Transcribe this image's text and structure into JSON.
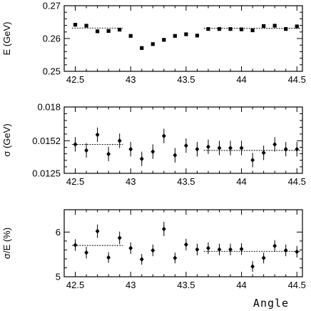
{
  "chart_data": [
    {
      "type": "scatter",
      "marker": "square",
      "ylabel": "E (GeV)",
      "xlim": [
        42.4,
        44.55
      ],
      "ylim": [
        0.25,
        0.27
      ],
      "x_ticks": [
        42.5,
        43,
        43.5,
        44,
        44.5
      ],
      "x_tick_labels": [
        "42.5",
        "43",
        "43.5",
        "44",
        "44.5"
      ],
      "y_ticks": [
        0.25,
        0.26,
        0.27
      ],
      "y_tick_labels": [
        "0.25",
        "0.26",
        "0.27"
      ],
      "x": [
        42.5,
        42.6,
        42.7,
        42.8,
        42.9,
        43.0,
        43.1,
        43.2,
        43.3,
        43.4,
        43.5,
        43.6,
        43.7,
        43.8,
        43.9,
        44.0,
        44.1,
        44.2,
        44.3,
        44.4,
        44.5
      ],
      "y": [
        0.2642,
        0.2639,
        0.2622,
        0.2623,
        0.2627,
        0.2608,
        0.2571,
        0.2583,
        0.2596,
        0.2608,
        0.2613,
        0.2609,
        0.2629,
        0.2629,
        0.2629,
        0.2628,
        0.2625,
        0.2638,
        0.2639,
        0.2629,
        0.2637
      ],
      "yerr": [
        0,
        0,
        0,
        0,
        0,
        0,
        0,
        0,
        0,
        0,
        0,
        0,
        0,
        0,
        0,
        0,
        0,
        0,
        0,
        0,
        0
      ],
      "fit_lines": [
        {
          "x": [
            42.47,
            42.93
          ],
          "y": 0.2632
        },
        {
          "x": [
            43.66,
            44.53
          ],
          "y": 0.2631
        }
      ]
    },
    {
      "type": "scatter",
      "marker": "diamond",
      "ylabel": "σ (GeV)",
      "xlim": [
        42.4,
        44.55
      ],
      "ylim": [
        0.0125,
        0.018
      ],
      "x_ticks": [
        42.5,
        43,
        43.5,
        44,
        44.5
      ],
      "x_tick_labels": [
        "42.5",
        "43",
        "43.5",
        "44",
        "44.5"
      ],
      "y_ticks": [
        0.0125,
        0.0152,
        0.018
      ],
      "y_tick_labels": [
        "0.0125",
        "0.0152",
        "0.018"
      ],
      "x": [
        42.5,
        42.6,
        42.7,
        42.8,
        42.9,
        43.0,
        43.1,
        43.2,
        43.3,
        43.4,
        43.5,
        43.6,
        43.7,
        43.8,
        43.9,
        44.0,
        44.1,
        44.2,
        44.3,
        44.4,
        44.5
      ],
      "y": [
        0.0149,
        0.0144,
        0.0157,
        0.0141,
        0.0152,
        0.0145,
        0.0137,
        0.0143,
        0.0156,
        0.014,
        0.0148,
        0.0145,
        0.0147,
        0.0146,
        0.0146,
        0.0146,
        0.0136,
        0.0142,
        0.0149,
        0.0145,
        0.0145
      ],
      "yerr": [
        0.0006,
        0.0006,
        0.0006,
        0.0006,
        0.0006,
        0.0006,
        0.0006,
        0.0006,
        0.0006,
        0.0006,
        0.0006,
        0.0006,
        0.0006,
        0.0006,
        0.0006,
        0.0006,
        0.0006,
        0.0006,
        0.0006,
        0.0006,
        0.0006
      ],
      "fit_lines": [
        {
          "x": [
            42.47,
            42.93
          ],
          "y": 0.0149
        },
        {
          "x": [
            43.66,
            44.53
          ],
          "y": 0.0144
        }
      ]
    },
    {
      "type": "scatter",
      "marker": "diamond",
      "ylabel": "σ/E (%)",
      "xlabel": "Angle",
      "xlim": [
        42.4,
        44.55
      ],
      "ylim": [
        5.0,
        6.5
      ],
      "x_ticks": [
        42.5,
        43,
        43.5,
        44,
        44.5
      ],
      "x_tick_labels": [
        "42.5",
        "43",
        "43.5",
        "44",
        "44.5"
      ],
      "y_ticks": [
        5,
        6
      ],
      "y_tick_labels": [
        "5",
        "6"
      ],
      "x": [
        42.5,
        42.6,
        42.7,
        42.8,
        42.9,
        43.0,
        43.1,
        43.2,
        43.3,
        43.4,
        43.5,
        43.6,
        43.7,
        43.8,
        43.9,
        44.0,
        44.1,
        44.2,
        44.3,
        44.4,
        44.5
      ],
      "y": [
        5.71,
        5.54,
        6.02,
        5.43,
        5.87,
        5.64,
        5.39,
        5.59,
        6.07,
        5.42,
        5.72,
        5.61,
        5.64,
        5.61,
        5.61,
        5.62,
        5.23,
        5.42,
        5.69,
        5.59,
        5.56
      ],
      "yerr": [
        0.13,
        0.13,
        0.15,
        0.12,
        0.14,
        0.13,
        0.12,
        0.13,
        0.16,
        0.12,
        0.13,
        0.13,
        0.13,
        0.13,
        0.13,
        0.13,
        0.12,
        0.12,
        0.13,
        0.13,
        0.13
      ],
      "fit_lines": [
        {
          "x": [
            42.47,
            42.93
          ],
          "y": 5.7
        },
        {
          "x": [
            43.66,
            44.53
          ],
          "y": 5.57
        }
      ]
    }
  ]
}
